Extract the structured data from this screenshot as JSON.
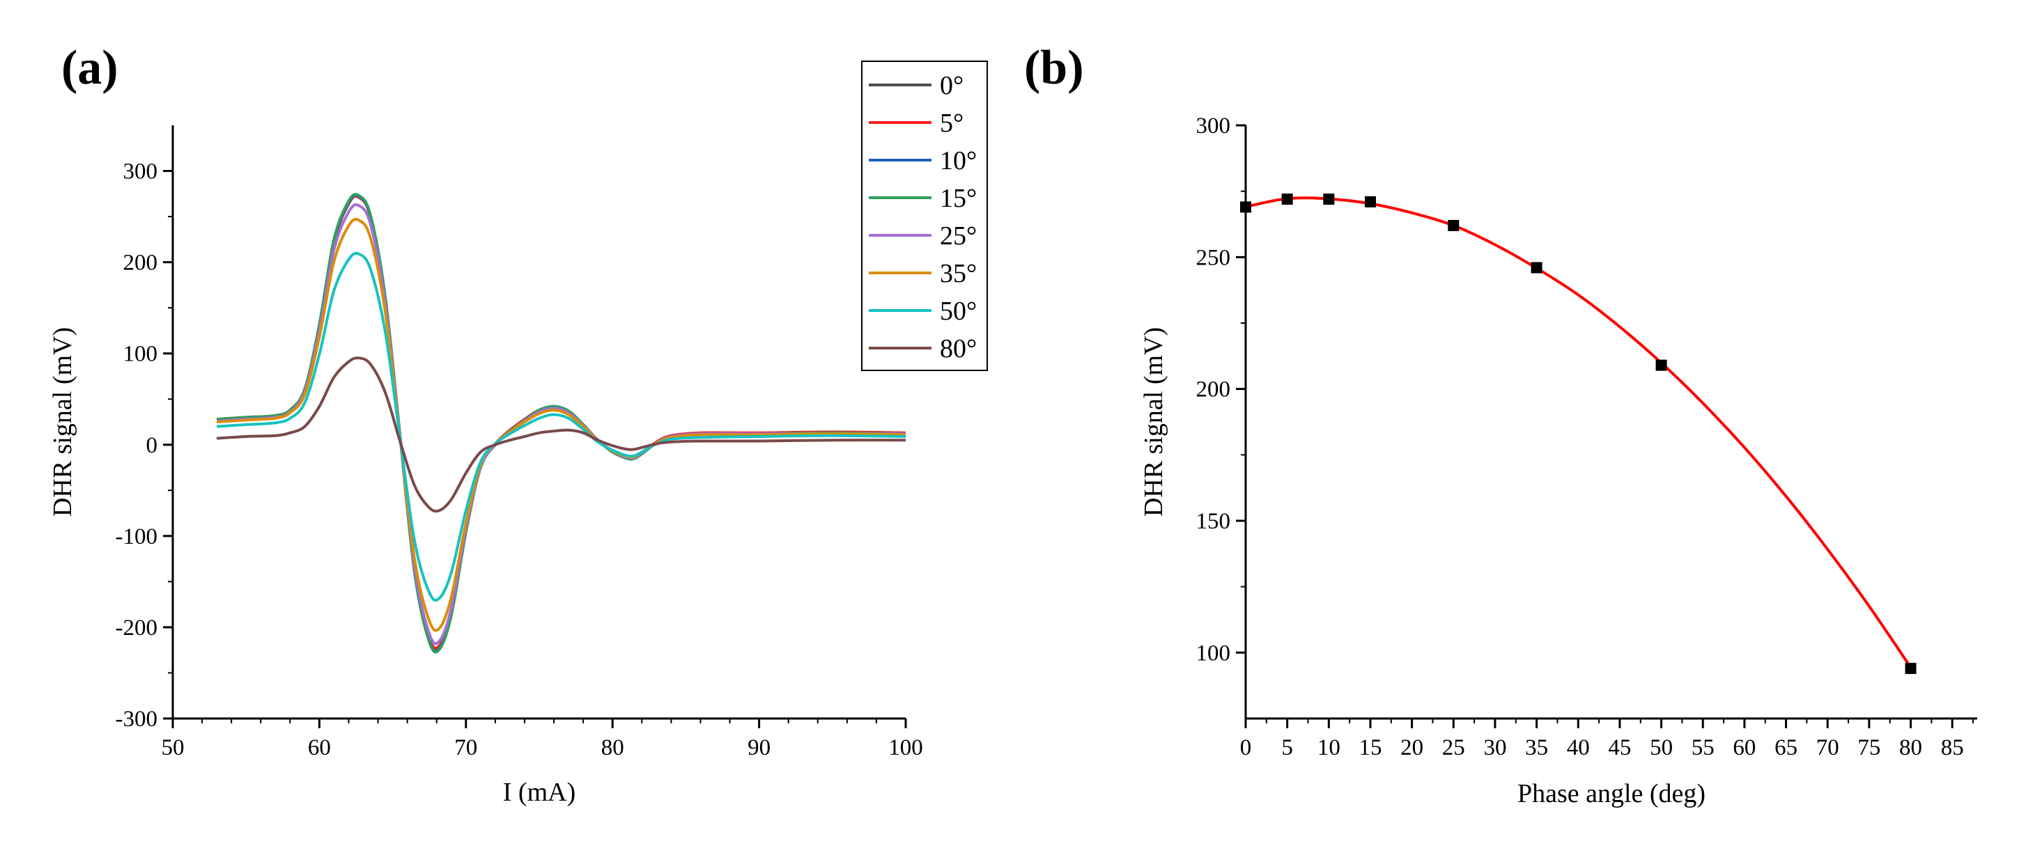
{
  "figure": {
    "panel_a_label": "(a)",
    "panel_b_label": "(b)"
  },
  "chart_data": [
    {
      "type": "line",
      "panel": "(a)",
      "xlabel": "I (mA)",
      "ylabel": "DHR signal (mV)",
      "xlim": [
        50,
        100
      ],
      "ylim": [
        -300,
        350
      ],
      "xticks": [
        50,
        60,
        70,
        80,
        90,
        100
      ],
      "yticks": [
        -300,
        -200,
        -100,
        0,
        100,
        200,
        300
      ],
      "grid": false,
      "legend_position": "top-right",
      "x": [
        53,
        55,
        57,
        58,
        59,
        60,
        61,
        62,
        62.7,
        63.5,
        64.5,
        65.5,
        66.5,
        67.5,
        68.2,
        69,
        70,
        71,
        72,
        73,
        74,
        75,
        76,
        77,
        78,
        79,
        80,
        81,
        81.5,
        82,
        83,
        84,
        86,
        90,
        95,
        100
      ],
      "series": [
        {
          "name": "0°",
          "color": "#4d4d4d",
          "values": [
            27,
            29,
            31,
            37,
            60,
            130,
            222,
            264,
            272,
            250,
            160,
            10,
            -140,
            -214,
            -222,
            -185,
            -95,
            -25,
            0,
            15,
            27,
            38,
            42,
            37,
            22,
            5,
            -8,
            -15,
            -15,
            -10,
            2,
            9,
            12,
            12,
            13,
            12
          ]
        },
        {
          "name": "5°",
          "color": "#ff1f1f",
          "values": [
            28,
            30,
            32,
            38,
            61,
            131,
            223,
            265,
            271,
            249,
            159,
            11,
            -139,
            -212,
            -220,
            -183,
            -93,
            -24,
            1,
            16,
            28,
            38,
            41,
            36,
            21,
            5,
            -7,
            -14,
            -14,
            -9,
            3,
            10,
            13,
            13,
            14,
            13
          ]
        },
        {
          "name": "10°",
          "color": "#1f5fbf",
          "values": [
            27,
            29,
            31,
            37,
            60,
            131,
            224,
            266,
            272,
            250,
            161,
            11,
            -140,
            -215,
            -223,
            -186,
            -95,
            -25,
            0,
            15,
            27,
            38,
            42,
            37,
            22,
            5,
            -8,
            -15,
            -15,
            -10,
            2,
            9,
            12,
            12,
            13,
            12
          ]
        },
        {
          "name": "15°",
          "color": "#2e9f5a",
          "values": [
            28,
            30,
            32,
            38,
            61,
            132,
            225,
            267,
            273,
            251,
            161,
            11,
            -141,
            -216,
            -224,
            -187,
            -96,
            -25,
            0,
            15,
            27,
            38,
            42,
            37,
            22,
            5,
            -8,
            -15,
            -15,
            -10,
            2,
            9,
            12,
            12,
            13,
            12
          ]
        },
        {
          "name": "25°",
          "color": "#a46fd6",
          "values": [
            26,
            28,
            30,
            36,
            58,
            125,
            214,
            255,
            262,
            241,
            154,
            10,
            -135,
            -207,
            -215,
            -179,
            -92,
            -24,
            0,
            14,
            26,
            36,
            40,
            35,
            21,
            5,
            -7,
            -14,
            -14,
            -9,
            2,
            9,
            12,
            12,
            12,
            12
          ]
        },
        {
          "name": "35°",
          "color": "#d98e04",
          "values": [
            25,
            27,
            29,
            35,
            55,
            118,
            201,
            240,
            246,
            226,
            145,
            9,
            -126,
            -193,
            -201,
            -167,
            -86,
            -22,
            1,
            14,
            25,
            34,
            38,
            33,
            20,
            4,
            -7,
            -13,
            -13,
            -8,
            2,
            8,
            11,
            11,
            12,
            11
          ]
        },
        {
          "name": "50°",
          "color": "#17c2c2",
          "values": [
            20,
            22,
            24,
            29,
            46,
            99,
            169,
            203,
            209,
            192,
            123,
            8,
            -106,
            -162,
            -168,
            -140,
            -72,
            -19,
            1,
            12,
            21,
            29,
            33,
            29,
            17,
            3,
            -6,
            -12,
            -12,
            -8,
            1,
            6,
            8,
            9,
            10,
            9
          ]
        },
        {
          "name": "80°",
          "color": "#7a4a4a",
          "values": [
            7,
            9,
            10,
            13,
            20,
            42,
            74,
            91,
            95,
            88,
            57,
            4,
            -45,
            -69,
            -72,
            -60,
            -31,
            -8,
            0,
            5,
            9,
            13,
            15,
            16,
            13,
            5,
            -1,
            -5,
            -5,
            -3,
            1,
            3,
            4,
            4,
            5,
            5
          ]
        }
      ]
    },
    {
      "type": "scatter",
      "panel": "(b)",
      "xlabel": "Phase angle (deg)",
      "ylabel": "DHR signal (mV)",
      "xlim": [
        0,
        88
      ],
      "ylim": [
        75,
        300
      ],
      "xticks": [
        0,
        5,
        10,
        15,
        20,
        25,
        30,
        35,
        40,
        45,
        50,
        55,
        60,
        65,
        70,
        75,
        80,
        85
      ],
      "yticks": [
        100,
        150,
        200,
        250,
        300
      ],
      "grid": false,
      "points": {
        "x": [
          0,
          5,
          10,
          15,
          25,
          35,
          50,
          80
        ],
        "y": [
          269,
          272,
          272,
          271,
          262,
          246,
          209,
          94
        ],
        "color": "#000000"
      },
      "fit": {
        "color": "#ff0000",
        "x": [
          0,
          5,
          10,
          15,
          20,
          25,
          30,
          35,
          40,
          45,
          50,
          55,
          60,
          65,
          70,
          75,
          80
        ],
        "y": [
          269.1,
          272.2,
          272.1,
          270.3,
          266.8,
          262.0,
          254.7,
          245.8,
          235.7,
          223.6,
          209.9,
          194.6,
          177.8,
          159.3,
          139.2,
          117.6,
          94.4
        ]
      }
    }
  ]
}
